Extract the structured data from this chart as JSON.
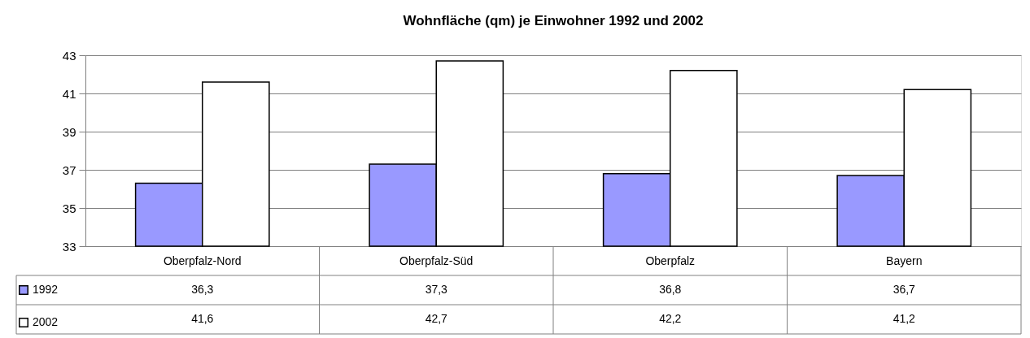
{
  "chart_data": {
    "type": "bar",
    "title": "Wohnfläche (qm) je Einwohner 1992 und 2002",
    "categories": [
      "Oberpfalz-Nord",
      "Oberpfalz-Süd",
      "Oberpfalz",
      "Bayern"
    ],
    "series": [
      {
        "name": "1992",
        "color": "#9999ff",
        "values": [
          36.3,
          37.3,
          36.8,
          36.7
        ],
        "value_labels": [
          "36,3",
          "37,3",
          "36,8",
          "36,7"
        ]
      },
      {
        "name": "2002",
        "color": "#ffffff",
        "values": [
          41.6,
          42.7,
          42.2,
          41.2
        ],
        "value_labels": [
          "41,6",
          "42,7",
          "42,2",
          "41,2"
        ]
      }
    ],
    "ylim": [
      33,
      43
    ],
    "yticks": [
      33,
      35,
      37,
      39,
      41,
      43
    ],
    "grid": "y",
    "legend": "bottom left"
  }
}
